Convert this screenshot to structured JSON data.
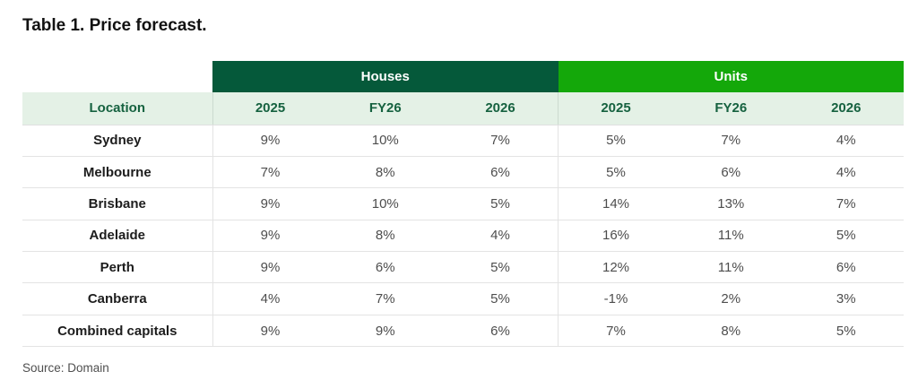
{
  "title": "Table 1. Price forecast.",
  "source": "Source: Domain",
  "colors": {
    "houses_header_bg": "#05593A",
    "units_header_bg": "#14A80A",
    "subheader_bg": "#E4F1E6",
    "subheader_text": "#166240",
    "header_text": "#FFFFFF",
    "location_text": "#1D1D1D",
    "value_text": "#4D4D4D",
    "row_border": "#E3E3E3"
  },
  "table": {
    "location_header": "Location",
    "groups": [
      {
        "label": "Houses",
        "columns": [
          "2025",
          "FY26",
          "2026"
        ]
      },
      {
        "label": "Units",
        "columns": [
          "2025",
          "FY26",
          "2026"
        ]
      }
    ],
    "rows": [
      {
        "location": "Sydney",
        "houses": [
          "9%",
          "10%",
          "7%"
        ],
        "units": [
          "5%",
          "7%",
          "4%"
        ]
      },
      {
        "location": "Melbourne",
        "houses": [
          "7%",
          "8%",
          "6%"
        ],
        "units": [
          "5%",
          "6%",
          "4%"
        ]
      },
      {
        "location": "Brisbane",
        "houses": [
          "9%",
          "10%",
          "5%"
        ],
        "units": [
          "14%",
          "13%",
          "7%"
        ]
      },
      {
        "location": "Adelaide",
        "houses": [
          "9%",
          "8%",
          "4%"
        ],
        "units": [
          "16%",
          "11%",
          "5%"
        ]
      },
      {
        "location": "Perth",
        "houses": [
          "9%",
          "6%",
          "5%"
        ],
        "units": [
          "12%",
          "11%",
          "6%"
        ]
      },
      {
        "location": "Canberra",
        "houses": [
          "4%",
          "7%",
          "5%"
        ],
        "units": [
          "-1%",
          "2%",
          "3%"
        ]
      },
      {
        "location": "Combined capitals",
        "houses": [
          "9%",
          "9%",
          "6%"
        ],
        "units": [
          "7%",
          "8%",
          "5%"
        ]
      }
    ]
  },
  "chart_data": {
    "type": "table",
    "title": "Table 1. Price forecast.",
    "columns": [
      "Location",
      "Houses 2025",
      "Houses FY26",
      "Houses 2026",
      "Units 2025",
      "Units FY26",
      "Units 2026"
    ],
    "rows": [
      [
        "Sydney",
        "9%",
        "10%",
        "7%",
        "5%",
        "7%",
        "4%"
      ],
      [
        "Melbourne",
        "7%",
        "8%",
        "6%",
        "5%",
        "6%",
        "4%"
      ],
      [
        "Brisbane",
        "9%",
        "10%",
        "5%",
        "14%",
        "13%",
        "7%"
      ],
      [
        "Adelaide",
        "9%",
        "8%",
        "4%",
        "16%",
        "11%",
        "5%"
      ],
      [
        "Perth",
        "9%",
        "6%",
        "5%",
        "12%",
        "11%",
        "6%"
      ],
      [
        "Canberra",
        "4%",
        "7%",
        "5%",
        "-1%",
        "2%",
        "3%"
      ],
      [
        "Combined capitals",
        "9%",
        "9%",
        "6%",
        "7%",
        "8%",
        "5%"
      ]
    ],
    "source": "Source: Domain"
  }
}
